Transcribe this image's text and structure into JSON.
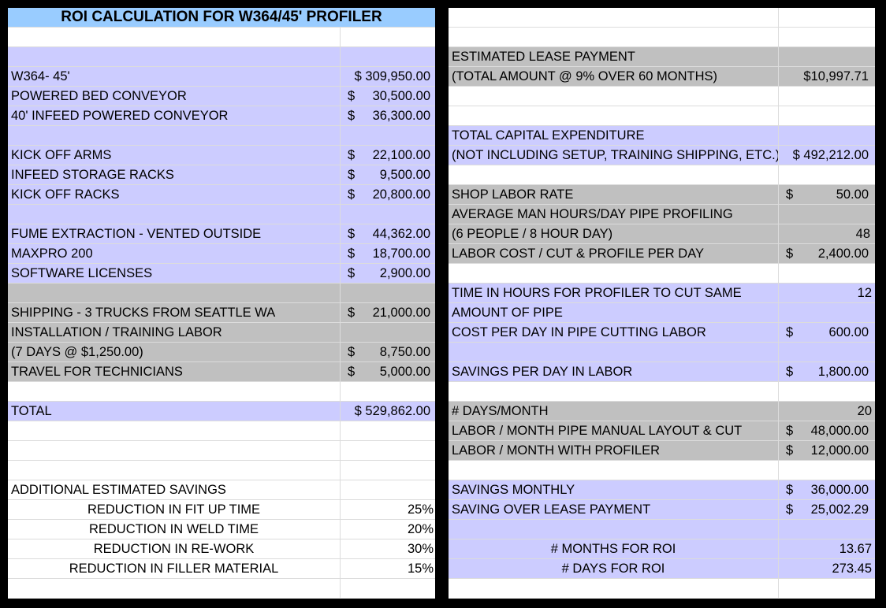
{
  "left": {
    "title": "ROI CALCULATION FOR W364/45' PROFILER",
    "items": [
      {
        "label": "W364- 45'",
        "dollar": "",
        "amount": "$ 309,950.00"
      },
      {
        "label": "POWERED BED CONVEYOR",
        "dollar": "$",
        "amount": "30,500.00"
      },
      {
        "label": "40' INFEED POWERED CONVEYOR",
        "dollar": "$",
        "amount": "36,300.00"
      },
      {
        "label": "KICK OFF ARMS",
        "dollar": "$",
        "amount": "22,100.00"
      },
      {
        "label": "INFEED STORAGE RACKS",
        "dollar": "$",
        "amount": "9,500.00"
      },
      {
        "label": "KICK OFF RACKS",
        "dollar": "$",
        "amount": "20,800.00"
      },
      {
        "label": "FUME EXTRACTION - VENTED OUTSIDE",
        "dollar": "$",
        "amount": "44,362.00"
      },
      {
        "label": "MAXPRO 200",
        "dollar": "$",
        "amount": "18,700.00"
      },
      {
        "label": "SOFTWARE LICENSES",
        "dollar": "$",
        "amount": "2,900.00"
      },
      {
        "label": "SHIPPING - 3 TRUCKS FROM SEATTLE WA",
        "dollar": "$",
        "amount": "21,000.00"
      },
      {
        "label": "INSTALLATION / TRAINING LABOR",
        "dollar": "",
        "amount": ""
      },
      {
        "label": "(7 DAYS @ $1,250.00)",
        "dollar": "$",
        "amount": "8,750.00"
      },
      {
        "label": "TRAVEL FOR TECHNICIANS",
        "dollar": "$",
        "amount": "5,000.00"
      }
    ],
    "total": {
      "label": "TOTAL",
      "amount": "$ 529,862.00"
    },
    "savings_header": "ADDITIONAL ESTIMATED SAVINGS",
    "savings": [
      {
        "label": "REDUCTION IN FIT UP TIME",
        "pct": "25%"
      },
      {
        "label": "REDUCTION IN WELD TIME",
        "pct": "20%"
      },
      {
        "label": "REDUCTION IN RE-WORK",
        "pct": "30%"
      },
      {
        "label": "REDUCTION IN FILLER MATERIAL",
        "pct": "15%"
      }
    ]
  },
  "right": {
    "lease_label_1": "ESTIMATED LEASE PAYMENT",
    "lease_label_2": "(TOTAL AMOUNT @ 9% OVER 60 MONTHS)",
    "lease_value": "$10,997.71",
    "capex_label_1": "TOTAL CAPITAL EXPENDITURE",
    "capex_label_2": "(NOT INCLUDING SETUP, TRAINING SHIPPING, ETC.)",
    "capex_value": "$ 492,212.00",
    "shop_rate_label": "SHOP LABOR RATE",
    "shop_rate_dollar": "$",
    "shop_rate_value": "50.00",
    "man_hours_label_1": "AVERAGE MAN HOURS/DAY PIPE PROFILING",
    "man_hours_label_2": "(6 PEOPLE / 8 HOUR DAY)",
    "man_hours_value": "48",
    "labor_cost_label": "LABOR COST / CUT & PROFILE PER DAY",
    "labor_cost_dollar": "$",
    "labor_cost_value": "2,400.00",
    "time_label_1": "TIME IN HOURS FOR PROFILER TO CUT SAME",
    "time_value": "12",
    "time_label_2": "AMOUNT OF PIPE",
    "cost_day_label": "COST PER DAY IN PIPE CUTTING LABOR",
    "cost_day_dollar": "$",
    "cost_day_value": "600.00",
    "savings_day_label": "SAVINGS PER DAY IN LABOR",
    "savings_day_dollar": "$",
    "savings_day_value": "1,800.00",
    "days_month_label": "# DAYS/MONTH",
    "days_month_value": "20",
    "manual_label": "LABOR / MONTH PIPE MANUAL LAYOUT & CUT",
    "manual_dollar": "$",
    "manual_value": "48,000.00",
    "profiler_label": "LABOR / MONTH WITH PROFILER",
    "profiler_dollar": "$",
    "profiler_value": "12,000.00",
    "savings_monthly_label": "SAVINGS MONTHLY",
    "savings_monthly_dollar": "$",
    "savings_monthly_value": "36,000.00",
    "saving_lease_label": "SAVING OVER LEASE PAYMENT",
    "saving_lease_dollar": "$",
    "saving_lease_value": "25,002.29",
    "months_roi_label": "# MONTHS FOR ROI",
    "months_roi_value": "13.67",
    "days_roi_label": "# DAYS FOR ROI",
    "days_roi_value": "273.45"
  }
}
